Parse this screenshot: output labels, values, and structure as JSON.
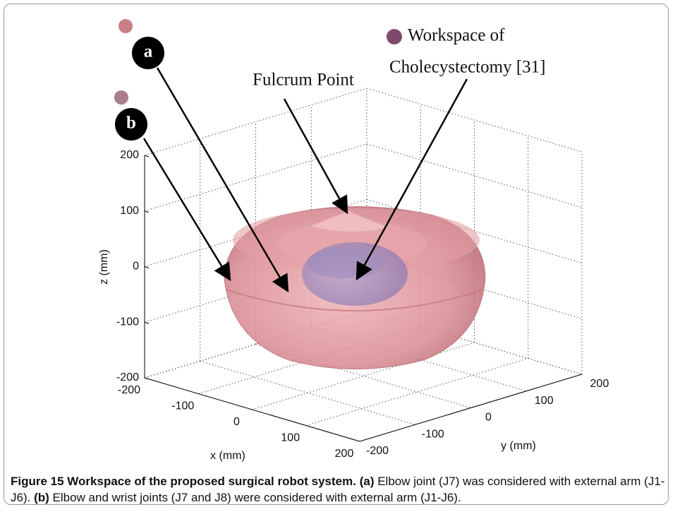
{
  "figure": {
    "labels": {
      "a": "a",
      "b": "b"
    },
    "annotations": {
      "fulcrum": "Fulcrum Point",
      "workspace": [
        "Workspace of",
        "Cholecystectomy [31]"
      ]
    },
    "axes": {
      "x_label": "x (mm)",
      "y_label": "y (mm)",
      "z_label": "z (mm)",
      "xticks": [
        -200,
        -100,
        0,
        100,
        200
      ],
      "yticks": [
        -200,
        -100,
        0,
        100,
        200
      ],
      "zticks": [
        -200,
        -100,
        0,
        100,
        200
      ]
    }
  },
  "caption": {
    "title": "Figure 15 Workspace of the proposed surgical robot system.",
    "parts": [
      {
        "tag": "(a)",
        "text": " Elbow joint (J7) was considered with external arm (J1-J6). "
      },
      {
        "tag": "(b)",
        "text": " Elbow and wrist joints (J7 and J8) were considered with external arm (J1-J6)."
      }
    ]
  }
}
